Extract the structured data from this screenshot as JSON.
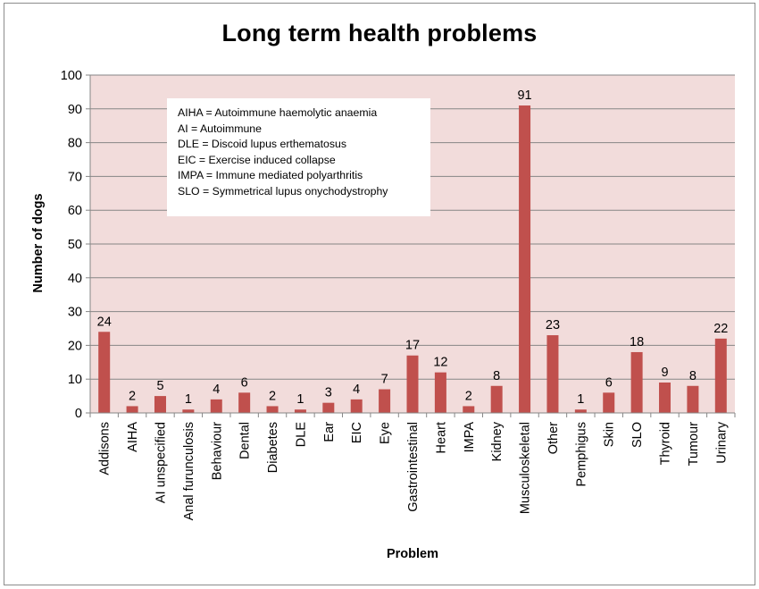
{
  "chart_data": {
    "type": "bar",
    "title": "Long term health problems",
    "xlabel": "Problem",
    "ylabel": "Number of dogs",
    "ylim": [
      0,
      100
    ],
    "yticks": [
      0,
      10,
      20,
      30,
      40,
      50,
      60,
      70,
      80,
      90,
      100
    ],
    "grid": true,
    "categories": [
      "Addisons",
      "AIHA",
      "AI unspecified",
      "Anal furunculosis",
      "Behaviour",
      "Dental",
      "Diabetes",
      "DLE",
      "Ear",
      "EIC",
      "Eye",
      "Gastrointestinal",
      "Heart",
      "IMPA",
      "Kidney",
      "Musculoskeletal",
      "Other",
      "Pemphigus",
      "Skin",
      "SLO",
      "Thyroid",
      "Tumour",
      "Urinary"
    ],
    "values": [
      24,
      2,
      5,
      1,
      4,
      6,
      2,
      1,
      3,
      4,
      7,
      17,
      12,
      2,
      8,
      91,
      23,
      1,
      6,
      18,
      9,
      8,
      22
    ],
    "annotations": [
      "AIHA = Autoimmune haemolytic anaemia",
      "AI = Autoimmune",
      "DLE = Discoid lupus erthematosus",
      "EIC = Exercise induced collapse",
      "IMPA = Immune mediated polyarthritis",
      "SLO = Symmetrical lupus onychodystrophy"
    ],
    "colors": {
      "bar": "#c0504d",
      "plot_background": "#f2dcdb",
      "gridline": "#868686"
    }
  }
}
